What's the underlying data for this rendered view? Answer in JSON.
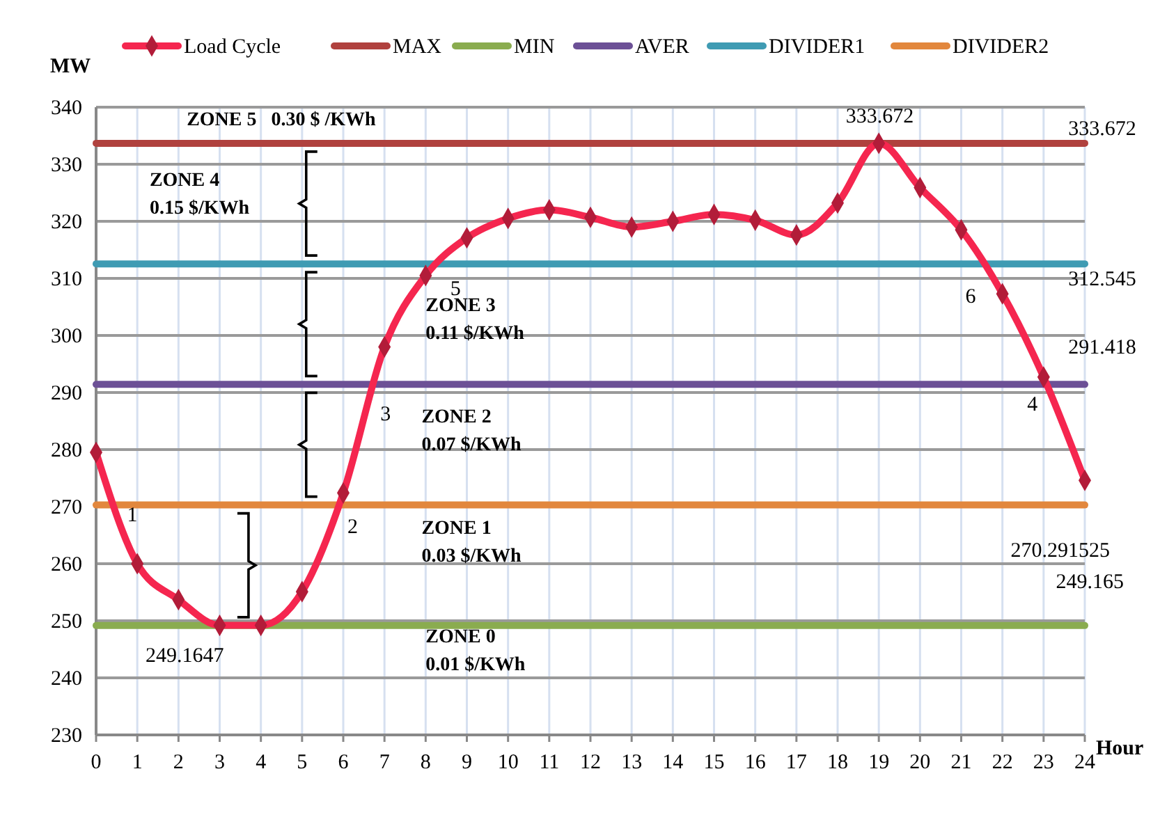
{
  "chart_data": {
    "type": "line",
    "xlabel": "Hour",
    "ylabel": "MW",
    "xlim": [
      0,
      24
    ],
    "xticks": [
      0,
      1,
      2,
      3,
      4,
      5,
      6,
      7,
      8,
      9,
      10,
      11,
      12,
      13,
      14,
      15,
      16,
      17,
      18,
      19,
      20,
      21,
      22,
      23,
      24
    ],
    "ylim": [
      230,
      340
    ],
    "yticks": [
      230,
      240,
      250,
      260,
      270,
      280,
      290,
      300,
      310,
      320,
      330,
      340
    ],
    "grid": true,
    "legend": "top",
    "line_style": "solid",
    "x": [
      0,
      1,
      2,
      3,
      4,
      5,
      6,
      7,
      8,
      9,
      10,
      11,
      12,
      13,
      14,
      15,
      16,
      17,
      18,
      19,
      20,
      21,
      22,
      23,
      24
    ],
    "series": [
      {
        "name": "Load Cycle",
        "color": "#f5264f",
        "marker": "diamond",
        "values": [
          279.5,
          260,
          253.7,
          249.2,
          249.2,
          255.1,
          272.4,
          298,
          310.5,
          317.1,
          320.5,
          322,
          320.7,
          319,
          320,
          321.2,
          320.2,
          317.6,
          323.2,
          333.672,
          325.9,
          318.5,
          307.3,
          292.7,
          274.6
        ]
      },
      {
        "name": "MAX",
        "color": "#b0413e",
        "marker": "none",
        "values": [
          333.672,
          333.672,
          333.672,
          333.672,
          333.672,
          333.672,
          333.672,
          333.672,
          333.672,
          333.672,
          333.672,
          333.672,
          333.672,
          333.672,
          333.672,
          333.672,
          333.672,
          333.672,
          333.672,
          333.672,
          333.672,
          333.672,
          333.672,
          333.672,
          333.672
        ]
      },
      {
        "name": "MIN",
        "color": "#8aac4f",
        "marker": "none",
        "values": [
          249.165,
          249.165,
          249.165,
          249.165,
          249.165,
          249.165,
          249.165,
          249.165,
          249.165,
          249.165,
          249.165,
          249.165,
          249.165,
          249.165,
          249.165,
          249.165,
          249.165,
          249.165,
          249.165,
          249.165,
          249.165,
          249.165,
          249.165,
          249.165,
          249.165
        ]
      },
      {
        "name": "AVER",
        "color": "#6c5096",
        "marker": "none",
        "values": [
          291.418,
          291.418,
          291.418,
          291.418,
          291.418,
          291.418,
          291.418,
          291.418,
          291.418,
          291.418,
          291.418,
          291.418,
          291.418,
          291.418,
          291.418,
          291.418,
          291.418,
          291.418,
          291.418,
          291.418,
          291.418,
          291.418,
          291.418,
          291.418,
          291.418
        ]
      },
      {
        "name": "DIVIDER1",
        "color": "#3f9bb3",
        "marker": "none",
        "values": [
          312.545,
          312.545,
          312.545,
          312.545,
          312.545,
          312.545,
          312.545,
          312.545,
          312.545,
          312.545,
          312.545,
          312.545,
          312.545,
          312.545,
          312.545,
          312.545,
          312.545,
          312.545,
          312.545,
          312.545,
          312.545,
          312.545,
          312.545,
          312.545,
          312.545
        ]
      },
      {
        "name": "DIVIDER2",
        "color": "#e2873d",
        "marker": "none",
        "values": [
          270.291525,
          270.291525,
          270.291525,
          270.291525,
          270.291525,
          270.291525,
          270.291525,
          270.291525,
          270.291525,
          270.291525,
          270.291525,
          270.291525,
          270.291525,
          270.291525,
          270.291525,
          270.291525,
          270.291525,
          270.291525,
          270.291525,
          270.291525,
          270.291525,
          270.291525,
          270.291525,
          270.291525,
          270.291525
        ]
      }
    ],
    "annotations": [
      "ZONE 5   0.30 $ /KWh",
      "ZONE 4\n0.15 $/KWh",
      "ZONE 3\n0.11 $/KWh",
      "ZONE 2\n0.07 $/KWh",
      "ZONE 1\n0.03 $/KWh",
      "ZONE 0\n0.01 $/KWh",
      "1",
      "2",
      "3",
      "5",
      "6",
      "4",
      "333.672",
      "249.1647",
      "333.672",
      "312.545",
      "291.418",
      "270.291525",
      "249.165"
    ]
  }
}
